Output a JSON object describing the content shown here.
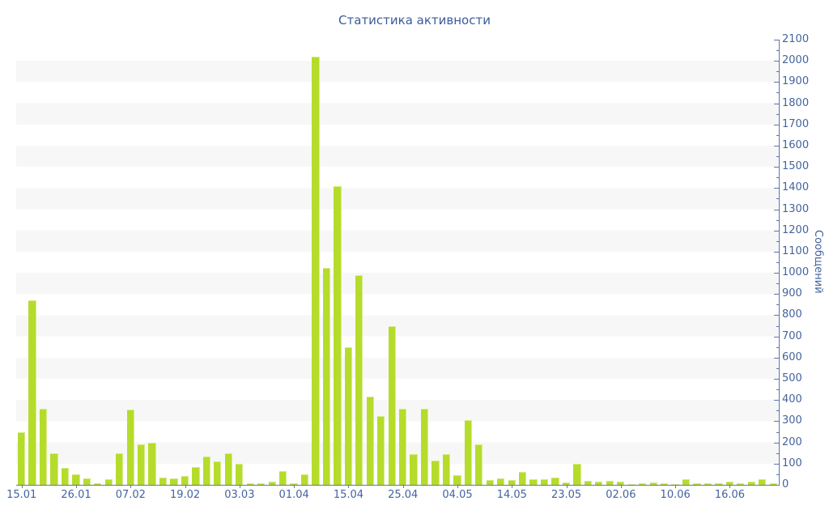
{
  "chart_data": {
    "type": "bar",
    "title": "Статистика активности",
    "ylabel": "Сообщений",
    "xlabel": "",
    "ylim": [
      0,
      2100
    ],
    "y_major_tick_step": 100,
    "y_minor_tick_step": 50,
    "grid": "horizontal-alternating-bands",
    "legend": "none",
    "bar_count": 70,
    "x_tick_labels": [
      "15.01",
      "26.01",
      "07.02",
      "19.02",
      "03.03",
      "01.04",
      "15.04",
      "25.04",
      "04.05",
      "14.05",
      "23.05",
      "02.06",
      "10.06",
      "16.06"
    ],
    "x_tick_positions": [
      0,
      5,
      10,
      15,
      20,
      25,
      30,
      35,
      40,
      45,
      50,
      55,
      60,
      65
    ],
    "values": [
      250,
      870,
      360,
      150,
      80,
      50,
      30,
      8,
      27,
      150,
      355,
      190,
      200,
      35,
      30,
      42,
      85,
      135,
      112,
      150,
      100,
      8,
      8,
      15,
      65,
      8,
      50,
      2020,
      1025,
      1410,
      650,
      990,
      415,
      325,
      750,
      360,
      145,
      360,
      115,
      145,
      45,
      305,
      190,
      23,
      30,
      23,
      62,
      27,
      27,
      35,
      10,
      100,
      19,
      15,
      20,
      15,
      5,
      8,
      12,
      8,
      4,
      27,
      9,
      6,
      9,
      17,
      8,
      17,
      27,
      8
    ],
    "colors": {
      "bar": "#b5dc2b",
      "bar_highlight": "#d9ec8d",
      "axis": "#5b76ad",
      "labels": "#44639f",
      "title": "#3c5a9a",
      "band": "#f7f7f7",
      "background": "#ffffff"
    }
  }
}
